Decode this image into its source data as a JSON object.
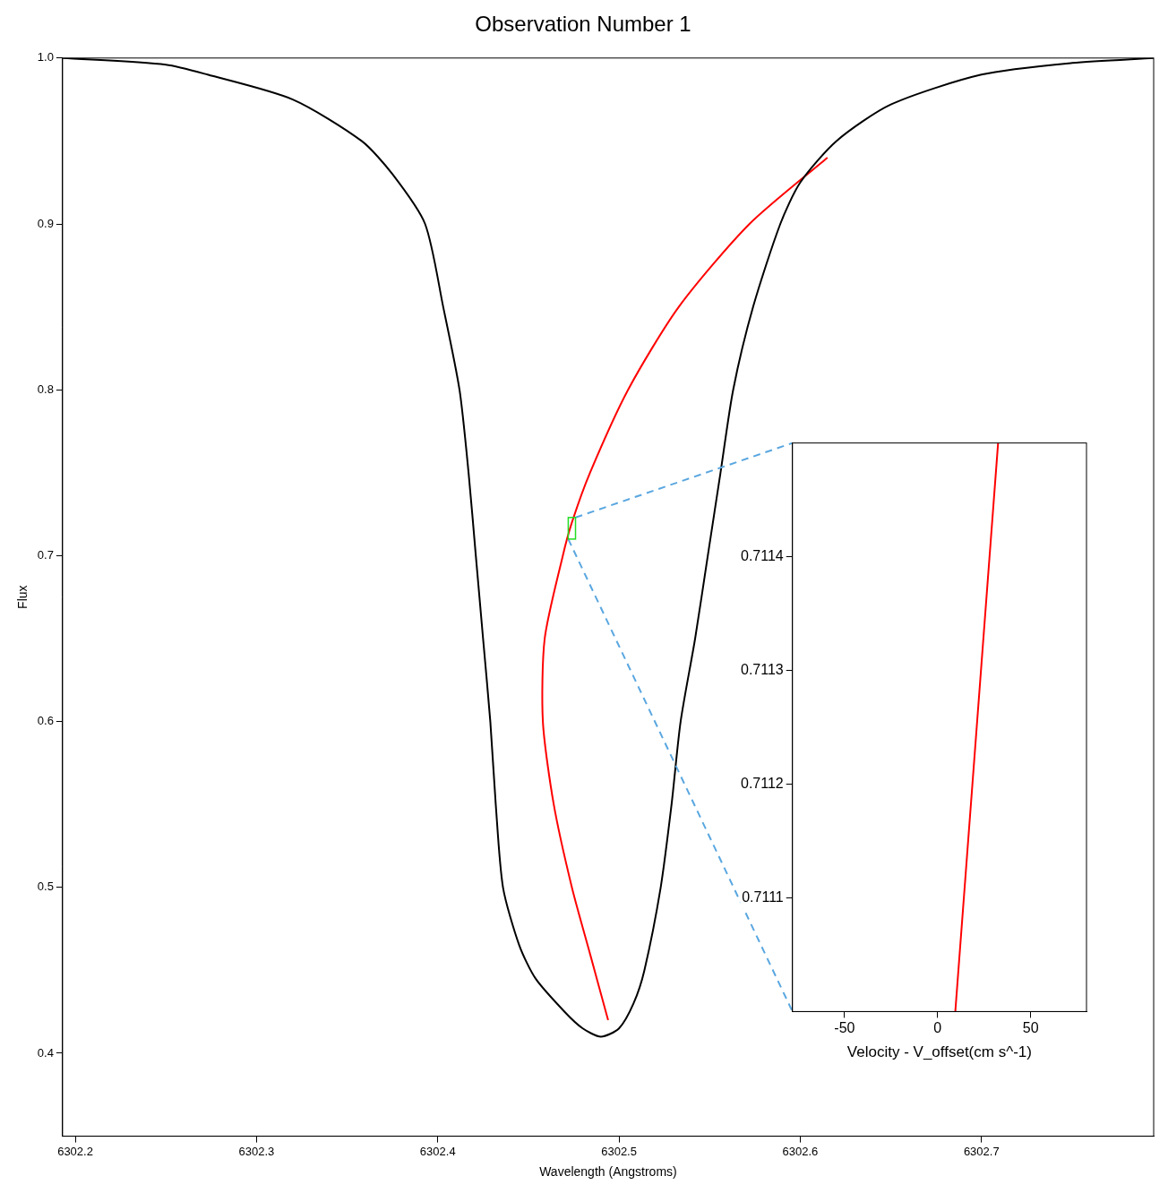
{
  "chart_data": [
    {
      "type": "line",
      "title": "Observation Number 1",
      "x_label": "Wavelength (Angstroms)",
      "y_label": "Flux",
      "xlim": [
        6302.193,
        6302.795
      ],
      "xticks": [
        6302.2,
        6302.3,
        6302.4,
        6302.5,
        6302.6,
        6302.7
      ],
      "ylim": [
        0.35,
        1.0
      ],
      "yticks": [
        0.4,
        0.5,
        0.6,
        0.7,
        0.8,
        0.9,
        {
          "value": 1.0,
          "label": "1.0"
        }
      ],
      "grid": false,
      "series": [
        {
          "color": "#000000",
          "x": [
            6302.193,
            6302.25,
            6302.273,
            6302.32,
            6302.358,
            6302.375,
            6302.393,
            6302.403,
            6302.412,
            6302.417,
            6302.421,
            6302.425,
            6302.429,
            6302.432,
            6302.436,
            6302.445,
            6302.454,
            6302.47,
            6302.48,
            6302.49,
            6302.5,
            6302.508,
            6302.514,
            6302.523,
            6302.529,
            6302.534,
            6302.542,
            6302.549,
            6302.556,
            6302.563,
            6302.574,
            6302.589,
            6302.6,
            6302.62,
            6302.65,
            6302.7,
            6302.75,
            6302.795
          ],
          "values": [
            1.0,
            0.996,
            0.99,
            0.975,
            0.95,
            0.93,
            0.9,
            0.85,
            0.8,
            0.75,
            0.7,
            0.65,
            0.6,
            0.55,
            0.5,
            0.465,
            0.445,
            0.425,
            0.415,
            0.41,
            0.415,
            0.43,
            0.45,
            0.5,
            0.55,
            0.6,
            0.65,
            0.7,
            0.75,
            0.8,
            0.85,
            0.9,
            0.925,
            0.95,
            0.972,
            0.99,
            0.997,
            1.0
          ]
        },
        {
          "color": "#ff0000",
          "x": [
            6302.494,
            6302.484,
            6302.474,
            6302.464,
            6302.458,
            6302.459,
            6302.469,
            6302.474,
            6302.484,
            6302.505,
            6302.533,
            6302.572,
            6302.615
          ],
          "values": [
            0.42,
            0.46,
            0.5,
            0.55,
            0.6,
            0.65,
            0.7,
            0.72,
            0.75,
            0.8,
            0.85,
            0.9,
            0.94
          ]
        }
      ],
      "zoom_box": {
        "x": [
          6302.472,
          6302.476
        ],
        "y": [
          0.71,
          0.723
        ]
      }
    },
    {
      "type": "line",
      "x_label": "Velocity - V_offset(cm s^-1)",
      "xlim": [
        -78,
        80
      ],
      "xticks": [
        -50,
        0,
        50
      ],
      "ylim": [
        0.711,
        0.7115
      ],
      "yticks": [
        0.7111,
        0.7112,
        0.7113,
        0.7114
      ],
      "grid": false,
      "series": [
        {
          "color": "#ff0000",
          "x": [
            9.5,
            32.5
          ],
          "values": [
            0.711,
            0.7115
          ]
        }
      ]
    }
  ]
}
